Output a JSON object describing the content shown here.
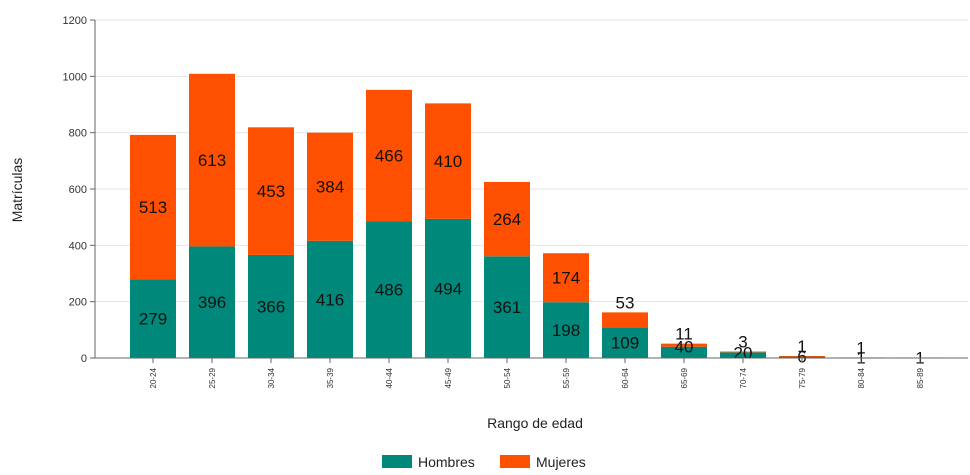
{
  "chart_data": {
    "type": "bar",
    "stacked": true,
    "categories": [
      "20-24",
      "25-29",
      "30-34",
      "35-39",
      "40-44",
      "45-49",
      "50-54",
      "55-59",
      "60-64",
      "65-69",
      "70-74",
      "75-79",
      "80-84",
      "85-89"
    ],
    "series": [
      {
        "name": "Hombres",
        "color": "#00897b",
        "values": [
          279,
          396,
          366,
          416,
          486,
          494,
          361,
          198,
          109,
          40,
          20,
          6,
          1,
          1
        ]
      },
      {
        "name": "Mujeres",
        "color": "#ff4f00",
        "values": [
          513,
          613,
          453,
          384,
          466,
          410,
          264,
          174,
          53,
          11,
          3,
          1,
          1,
          0
        ]
      }
    ],
    "xlabel": "Rango de edad",
    "ylabel": "Matrículas",
    "ylim": [
      0,
      1200
    ],
    "yticks": [
      "0",
      "200",
      "400",
      "600",
      "800",
      "1000",
      "1200"
    ],
    "grid": true,
    "legend_position": "bottom-center"
  }
}
